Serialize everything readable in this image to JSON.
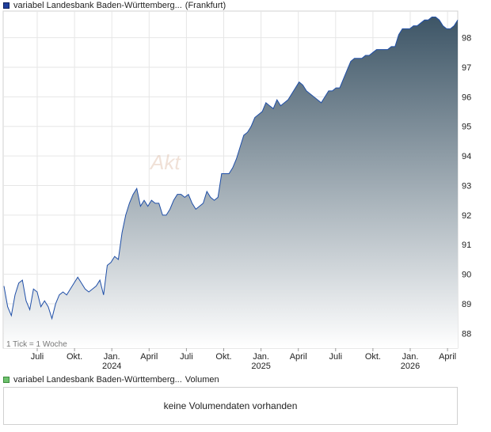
{
  "price_legend": {
    "label": "variabel Landesbank Baden-Württemberg...",
    "exchange": "(Frankfurt)"
  },
  "volume_legend": {
    "label": "variabel Landesbank Baden-Württemberg...",
    "suffix": "Volumen"
  },
  "volume_empty_text": "keine Volumendaten vorhanden",
  "tick_note": "1 Tick = 1 Woche",
  "watermark": "Akt",
  "colors": {
    "line": "#1f4fa8",
    "area_top": "#3d5566",
    "area_bottom": "#ffffff"
  },
  "chart_data": {
    "type": "area",
    "ylim": [
      87.5,
      98.9
    ],
    "yticks": [
      88,
      89,
      90,
      91,
      92,
      93,
      94,
      95,
      96,
      97,
      98
    ],
    "xticks": [
      {
        "label": "Juli",
        "year": ""
      },
      {
        "label": "Okt.",
        "year": ""
      },
      {
        "label": "Jan.",
        "year": "2024"
      },
      {
        "label": "April",
        "year": ""
      },
      {
        "label": "Juli",
        "year": ""
      },
      {
        "label": "Okt.",
        "year": ""
      },
      {
        "label": "Jan.",
        "year": "2025"
      },
      {
        "label": "April",
        "year": ""
      },
      {
        "label": "Juli",
        "year": ""
      },
      {
        "label": "Okt.",
        "year": ""
      },
      {
        "label": "Jan.",
        "year": "2026"
      },
      {
        "label": "April",
        "year": ""
      }
    ],
    "grid": true,
    "weeks_per_tick": 1,
    "series": [
      {
        "values": [
          89.6,
          88.9,
          88.6,
          89.3,
          89.7,
          89.8,
          89.1,
          88.8,
          89.5,
          89.4,
          88.9,
          89.1,
          88.9,
          88.5,
          89.0,
          89.3,
          89.4,
          89.3,
          89.5,
          89.7,
          89.9,
          89.7,
          89.5,
          89.4,
          89.5,
          89.6,
          89.8,
          89.3,
          90.3,
          90.4,
          90.6,
          90.5,
          91.4,
          92.0,
          92.4,
          92.7,
          92.9,
          92.3,
          92.5,
          92.3,
          92.5,
          92.4,
          92.4,
          92.0,
          92.0,
          92.2,
          92.5,
          92.7,
          92.7,
          92.6,
          92.7,
          92.4,
          92.2,
          92.3,
          92.4,
          92.8,
          92.6,
          92.5,
          92.6,
          93.4,
          93.4,
          93.4,
          93.6,
          93.9,
          94.3,
          94.7,
          94.8,
          95.0,
          95.3,
          95.4,
          95.5,
          95.8,
          95.7,
          95.6,
          95.9,
          95.7,
          95.8,
          95.9,
          96.1,
          96.3,
          96.5,
          96.4,
          96.2,
          96.1,
          96.0,
          95.9,
          95.8,
          96.0,
          96.2,
          96.2,
          96.3,
          96.3,
          96.6,
          96.9,
          97.2,
          97.3,
          97.3,
          97.3,
          97.4,
          97.4,
          97.5,
          97.6,
          97.6,
          97.6,
          97.6,
          97.7,
          97.7,
          98.1,
          98.3,
          98.3,
          98.3,
          98.4,
          98.4,
          98.5,
          98.6,
          98.6,
          98.7,
          98.7,
          98.6,
          98.4,
          98.3,
          98.3,
          98.4,
          98.6
        ]
      }
    ]
  }
}
